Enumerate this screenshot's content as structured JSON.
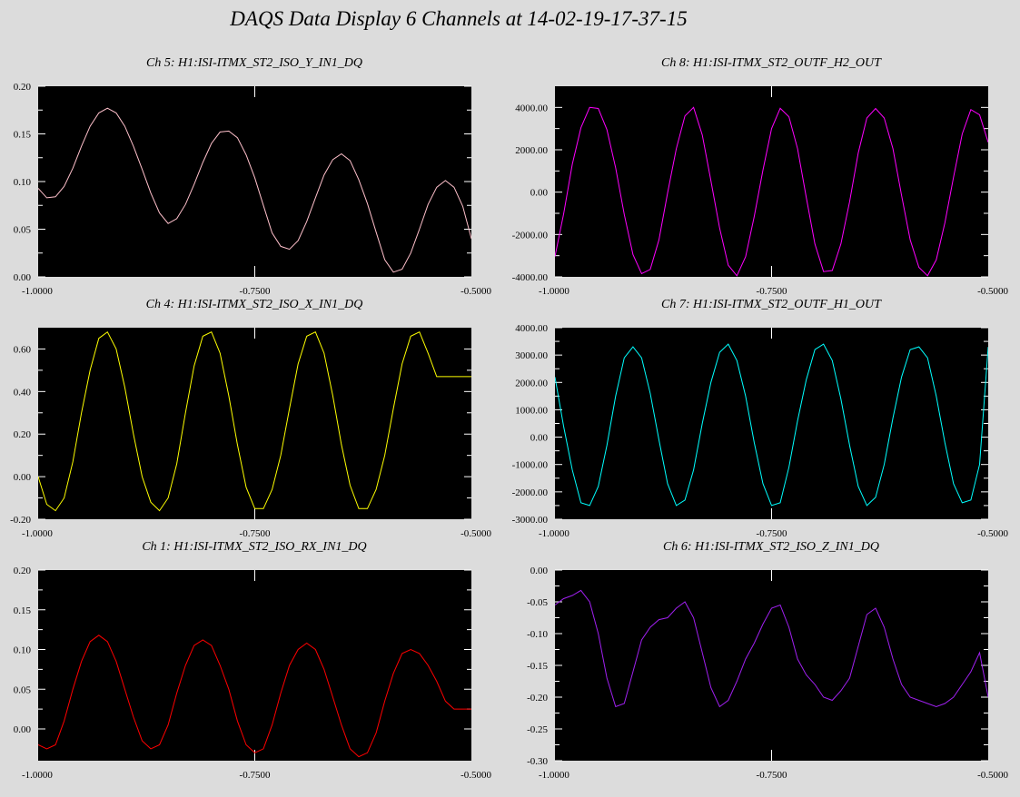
{
  "window": {
    "title": "DAQS Data Display 6 Channels at 14-02-19-17-37-15"
  },
  "chart_data": [
    {
      "type": "line",
      "title": "Ch 5:  H1:ISI-ITMX_ST2_ISO_Y_IN1_DQ",
      "color": "#ffc0cb",
      "xlim": [
        -1.0,
        -0.5
      ],
      "ylim": [
        0.0,
        0.2
      ],
      "xticks": [
        "-1.0000",
        "-0.7500",
        "-0.5000"
      ],
      "yticks": [
        "0.00",
        "0.05",
        "0.10",
        "0.15",
        "0.20"
      ],
      "ytick_values": [
        0.0,
        0.05,
        0.1,
        0.15,
        0.2
      ],
      "x": [
        -1.0,
        -0.99,
        -0.98,
        -0.97,
        -0.96,
        -0.95,
        -0.94,
        -0.93,
        -0.92,
        -0.91,
        -0.9,
        -0.89,
        -0.88,
        -0.87,
        -0.86,
        -0.85,
        -0.84,
        -0.83,
        -0.82,
        -0.81,
        -0.8,
        -0.79,
        -0.78,
        -0.77,
        -0.76,
        -0.75,
        -0.74,
        -0.73,
        -0.72,
        -0.71,
        -0.7,
        -0.69,
        -0.68,
        -0.67,
        -0.66,
        -0.65,
        -0.64,
        -0.63,
        -0.62,
        -0.61,
        -0.6,
        -0.59,
        -0.58,
        -0.57,
        -0.56,
        -0.55,
        -0.54,
        -0.53,
        -0.52,
        -0.51,
        -0.5
      ],
      "y": [
        0.093,
        0.083,
        0.084,
        0.095,
        0.114,
        0.137,
        0.158,
        0.172,
        0.177,
        0.172,
        0.158,
        0.137,
        0.113,
        0.088,
        0.067,
        0.056,
        0.061,
        0.076,
        0.097,
        0.12,
        0.14,
        0.152,
        0.153,
        0.146,
        0.128,
        0.104,
        0.075,
        0.046,
        0.032,
        0.029,
        0.038,
        0.058,
        0.083,
        0.107,
        0.123,
        0.129,
        0.122,
        0.102,
        0.077,
        0.047,
        0.018,
        0.005,
        0.008,
        0.025,
        0.05,
        0.076,
        0.094,
        0.101,
        0.094,
        0.074,
        0.04
      ]
    },
    {
      "type": "line",
      "title": "Ch 8:  H1:ISI-ITMX_ST2_OUTF_H2_OUT",
      "color": "#ff00ff",
      "xlim": [
        -1.0,
        -0.5
      ],
      "ylim": [
        -4000,
        5000
      ],
      "xticks": [
        "-1.0000",
        "-0.7500",
        "-0.5000"
      ],
      "yticks": [
        "-4000.00",
        "-2000.00",
        "0.00",
        "2000.00",
        "4000.00"
      ],
      "ytick_values": [
        -4000,
        -2000,
        0,
        2000,
        4000
      ],
      "x": [
        -1.0,
        -0.99,
        -0.98,
        -0.97,
        -0.96,
        -0.95,
        -0.94,
        -0.93,
        -0.92,
        -0.91,
        -0.9,
        -0.89,
        -0.88,
        -0.87,
        -0.86,
        -0.85,
        -0.84,
        -0.83,
        -0.82,
        -0.81,
        -0.8,
        -0.79,
        -0.78,
        -0.77,
        -0.76,
        -0.75,
        -0.74,
        -0.73,
        -0.72,
        -0.71,
        -0.7,
        -0.69,
        -0.68,
        -0.67,
        -0.66,
        -0.65,
        -0.64,
        -0.63,
        -0.62,
        -0.61,
        -0.6,
        -0.59,
        -0.58,
        -0.57,
        -0.56,
        -0.55,
        -0.54,
        -0.53,
        -0.52,
        -0.51,
        -0.5
      ],
      "y": [
        -3040,
        -1040,
        1320,
        3040,
        4000,
        3950,
        2950,
        1150,
        -1050,
        -2950,
        -3850,
        -3650,
        -2250,
        -40,
        2050,
        3600,
        4000,
        2700,
        540,
        -1700,
        -3450,
        -3950,
        -3050,
        -1150,
        1040,
        3000,
        3960,
        3560,
        2050,
        -250,
        -2450,
        -3750,
        -3700,
        -2450,
        -450,
        1850,
        3500,
        3950,
        3500,
        2050,
        -150,
        -2250,
        -3550,
        -3950,
        -3200,
        -1450,
        700,
        2750,
        3900,
        3650,
        2350
      ]
    },
    {
      "type": "line",
      "title": "Ch 4:  H1:ISI-ITMX_ST2_ISO_X_IN1_DQ",
      "color": "#ffff00",
      "xlim": [
        -1.0,
        -0.5
      ],
      "ylim": [
        -0.2,
        0.7
      ],
      "xticks": [
        "-1.0000",
        "-0.7500",
        "-0.5000"
      ],
      "yticks": [
        "-0.20",
        "0.00",
        "0.20",
        "0.40",
        "0.60"
      ],
      "ytick_values": [
        -0.2,
        0.0,
        0.2,
        0.4,
        0.6
      ],
      "x": [
        -1.0,
        -0.99,
        -0.98,
        -0.97,
        -0.96,
        -0.95,
        -0.94,
        -0.93,
        -0.92,
        -0.91,
        -0.9,
        -0.89,
        -0.88,
        -0.87,
        -0.86,
        -0.85,
        -0.84,
        -0.83,
        -0.82,
        -0.81,
        -0.8,
        -0.79,
        -0.78,
        -0.77,
        -0.76,
        -0.75,
        -0.74,
        -0.73,
        -0.72,
        -0.71,
        -0.7,
        -0.69,
        -0.68,
        -0.67,
        -0.66,
        -0.65,
        -0.64,
        -0.63,
        -0.62,
        -0.61,
        -0.6,
        -0.59,
        -0.58,
        -0.57,
        -0.56,
        -0.55,
        -0.54,
        -0.53,
        -0.52,
        -0.51,
        -0.5
      ],
      "y": [
        0.0,
        -0.13,
        -0.16,
        -0.1,
        0.07,
        0.3,
        0.5,
        0.65,
        0.68,
        0.6,
        0.42,
        0.2,
        0.0,
        -0.12,
        -0.16,
        -0.1,
        0.06,
        0.3,
        0.52,
        0.66,
        0.68,
        0.58,
        0.38,
        0.15,
        -0.05,
        -0.15,
        -0.15,
        -0.06,
        0.1,
        0.32,
        0.53,
        0.66,
        0.68,
        0.58,
        0.38,
        0.15,
        -0.04,
        -0.15,
        -0.15,
        -0.06,
        0.1,
        0.32,
        0.53,
        0.66,
        0.68,
        0.58,
        0.47,
        0.47,
        0.47,
        0.47,
        0.47
      ]
    },
    {
      "type": "line",
      "title": "Ch 7:  H1:ISI-ITMX_ST2_OUTF_H1_OUT",
      "color": "#00ffff",
      "xlim": [
        -1.0,
        -0.5
      ],
      "ylim": [
        -3000,
        4000
      ],
      "xticks": [
        "-1.0000",
        "-0.7500",
        "-0.5000"
      ],
      "yticks": [
        "-3000.00",
        "-2000.00",
        "-1000.00",
        "0.00",
        "1000.00",
        "2000.00",
        "3000.00",
        "4000.00"
      ],
      "ytick_values": [
        -3000,
        -2000,
        -1000,
        0,
        1000,
        2000,
        3000,
        4000
      ],
      "x": [
        -1.0,
        -0.99,
        -0.98,
        -0.97,
        -0.96,
        -0.95,
        -0.94,
        -0.93,
        -0.92,
        -0.91,
        -0.9,
        -0.89,
        -0.88,
        -0.87,
        -0.86,
        -0.85,
        -0.84,
        -0.83,
        -0.82,
        -0.81,
        -0.8,
        -0.79,
        -0.78,
        -0.77,
        -0.76,
        -0.75,
        -0.74,
        -0.73,
        -0.72,
        -0.71,
        -0.7,
        -0.69,
        -0.68,
        -0.67,
        -0.66,
        -0.65,
        -0.64,
        -0.63,
        -0.62,
        -0.61,
        -0.6,
        -0.59,
        -0.58,
        -0.57,
        -0.56,
        -0.55,
        -0.54,
        -0.53,
        -0.52,
        -0.51,
        -0.5
      ],
      "y": [
        2200,
        400,
        -1200,
        -2400,
        -2500,
        -1800,
        -300,
        1500,
        2900,
        3300,
        2900,
        1600,
        -100,
        -1700,
        -2500,
        -2300,
        -1200,
        500,
        2000,
        3100,
        3400,
        2800,
        1500,
        -200,
        -1700,
        -2500,
        -2400,
        -1100,
        600,
        2100,
        3200,
        3400,
        2800,
        1400,
        -300,
        -1800,
        -2500,
        -2200,
        -1000,
        700,
        2200,
        3200,
        3300,
        2900,
        1500,
        -200,
        -1700,
        -2400,
        -2300,
        -1000,
        3300
      ]
    },
    {
      "type": "line",
      "title": "Ch 1:  H1:ISI-ITMX_ST2_ISO_RX_IN1_DQ",
      "color": "#ff0000",
      "xlim": [
        -1.0,
        -0.5
      ],
      "ylim": [
        -0.04,
        0.2
      ],
      "xticks": [
        "-1.0000",
        "-0.7500",
        "-0.5000"
      ],
      "yticks": [
        "0.00",
        "0.05",
        "0.10",
        "0.15",
        "0.20"
      ],
      "ytick_values": [
        0.0,
        0.05,
        0.1,
        0.15,
        0.2
      ],
      "x": [
        -1.0,
        -0.99,
        -0.98,
        -0.97,
        -0.96,
        -0.95,
        -0.94,
        -0.93,
        -0.92,
        -0.91,
        -0.9,
        -0.89,
        -0.88,
        -0.87,
        -0.86,
        -0.85,
        -0.84,
        -0.83,
        -0.82,
        -0.81,
        -0.8,
        -0.79,
        -0.78,
        -0.77,
        -0.76,
        -0.75,
        -0.74,
        -0.73,
        -0.72,
        -0.71,
        -0.7,
        -0.69,
        -0.68,
        -0.67,
        -0.66,
        -0.65,
        -0.64,
        -0.63,
        -0.62,
        -0.61,
        -0.6,
        -0.59,
        -0.58,
        -0.57,
        -0.56,
        -0.55,
        -0.54,
        -0.53,
        -0.52,
        -0.51,
        -0.5
      ],
      "y": [
        -0.02,
        -0.025,
        -0.02,
        0.01,
        0.05,
        0.085,
        0.11,
        0.118,
        0.11,
        0.085,
        0.05,
        0.015,
        -0.015,
        -0.025,
        -0.02,
        0.005,
        0.045,
        0.08,
        0.105,
        0.112,
        0.105,
        0.08,
        0.05,
        0.01,
        -0.02,
        -0.03,
        -0.025,
        0.005,
        0.045,
        0.08,
        0.1,
        0.108,
        0.1,
        0.075,
        0.04,
        0.005,
        -0.025,
        -0.035,
        -0.03,
        -0.005,
        0.035,
        0.07,
        0.095,
        0.1,
        0.095,
        0.08,
        0.06,
        0.035,
        0.025,
        0.025,
        0.025
      ]
    },
    {
      "type": "line",
      "title": "Ch 6:  H1:ISI-ITMX_ST2_ISO_Z_IN1_DQ",
      "color": "#a020f0",
      "xlim": [
        -1.0,
        -0.5
      ],
      "ylim": [
        -0.3,
        0.0
      ],
      "xticks": [
        "-1.0000",
        "-0.7500",
        "-0.5000"
      ],
      "yticks": [
        "-0.30",
        "-0.25",
        "-0.20",
        "-0.15",
        "-0.10",
        "-0.05",
        "0.00"
      ],
      "ytick_values": [
        -0.3,
        -0.25,
        -0.2,
        -0.15,
        -0.1,
        -0.05,
        0.0
      ],
      "x": [
        -1.0,
        -0.99,
        -0.98,
        -0.97,
        -0.96,
        -0.95,
        -0.94,
        -0.93,
        -0.92,
        -0.91,
        -0.9,
        -0.89,
        -0.88,
        -0.87,
        -0.86,
        -0.85,
        -0.84,
        -0.83,
        -0.82,
        -0.81,
        -0.8,
        -0.79,
        -0.78,
        -0.77,
        -0.76,
        -0.75,
        -0.74,
        -0.73,
        -0.72,
        -0.71,
        -0.7,
        -0.69,
        -0.68,
        -0.67,
        -0.66,
        -0.65,
        -0.64,
        -0.63,
        -0.62,
        -0.61,
        -0.6,
        -0.59,
        -0.58,
        -0.57,
        -0.56,
        -0.55,
        -0.54,
        -0.53,
        -0.52,
        -0.51,
        -0.5
      ],
      "y": [
        -0.055,
        -0.045,
        -0.04,
        -0.032,
        -0.05,
        -0.1,
        -0.17,
        -0.215,
        -0.21,
        -0.16,
        -0.11,
        -0.09,
        -0.078,
        -0.075,
        -0.06,
        -0.05,
        -0.075,
        -0.13,
        -0.185,
        -0.215,
        -0.205,
        -0.175,
        -0.14,
        -0.115,
        -0.085,
        -0.06,
        -0.055,
        -0.09,
        -0.14,
        -0.165,
        -0.18,
        -0.2,
        -0.205,
        -0.19,
        -0.17,
        -0.12,
        -0.07,
        -0.06,
        -0.09,
        -0.14,
        -0.18,
        -0.2,
        -0.205,
        -0.21,
        -0.215,
        -0.21,
        -0.2,
        -0.18,
        -0.16,
        -0.13,
        -0.2
      ]
    }
  ]
}
